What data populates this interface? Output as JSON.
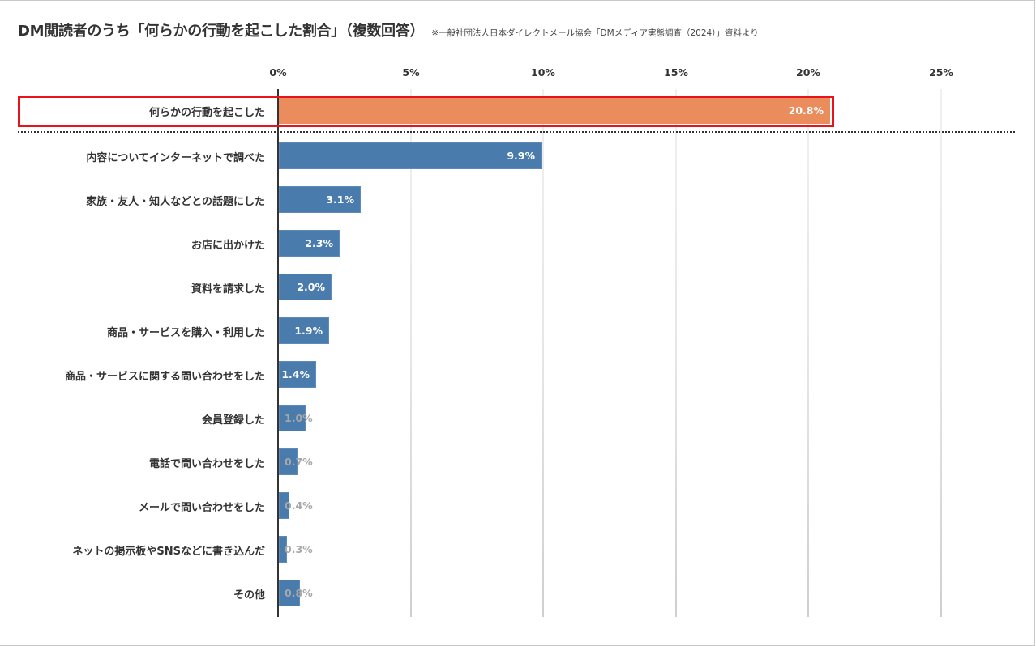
{
  "header": {
    "title": "DM閲読者のうち「何らかの行動を起こした割合」（複数回答）",
    "source_note": "※一般社団法人日本ダイレクトメール協会「DMメディア実態調査（2024）」資料より"
  },
  "axis": {
    "ticks": [
      "0%",
      "5%",
      "10%",
      "15%",
      "20%",
      "25%"
    ]
  },
  "rows": [
    {
      "label": "何らかの行動を起こした",
      "value": 20.8,
      "display": "20.8%"
    },
    {
      "label": "内容についてインターネットで調べた",
      "value": 9.9,
      "display": "9.9%"
    },
    {
      "label": "家族・友人・知人などとの話題にした",
      "value": 3.1,
      "display": "3.1%"
    },
    {
      "label": "お店に出かけた",
      "value": 2.3,
      "display": "2.3%"
    },
    {
      "label": "資料を請求した",
      "value": 2.0,
      "display": "2.0%"
    },
    {
      "label": "商品・サービスを購入・利用した",
      "value": 1.9,
      "display": "1.9%"
    },
    {
      "label": "商品・サービスに関する問い合わせをした",
      "value": 1.4,
      "display": "1.4%"
    },
    {
      "label": "会員登録した",
      "value": 1.0,
      "display": "1.0%"
    },
    {
      "label": "電話で問い合わせをした",
      "value": 0.7,
      "display": "0.7%"
    },
    {
      "label": "メールで問い合わせをした",
      "value": 0.4,
      "display": "0.4%"
    },
    {
      "label": "ネットの掲示板やSNSなどに書き込んだ",
      "value": 0.3,
      "display": "0.3%"
    },
    {
      "label": "その他",
      "value": 0.8,
      "display": "0.8%"
    }
  ],
  "colors": {
    "highlight_bar": "#ea8c5c",
    "bar": "#4a7bad",
    "highlight_border": "#e8141c"
  },
  "chart_data": {
    "type": "bar",
    "orientation": "horizontal",
    "title": "DM閲読者のうち「何らかの行動を起こした割合」（複数回答）",
    "subtitle": "※一般社団法人日本ダイレクトメール協会「DMメディア実態調査（2024）」資料より",
    "categories": [
      "何らかの行動を起こした",
      "内容についてインターネットで調べた",
      "家族・友人・知人などとの話題にした",
      "お店に出かけた",
      "資料を請求した",
      "商品・サービスを購入・利用した",
      "商品・サービスに関する問い合わせをした",
      "会員登録した",
      "電話で問い合わせをした",
      "メールで問い合わせをした",
      "ネットの掲示板やSNSなどに書き込んだ",
      "その他"
    ],
    "values": [
      20.8,
      9.9,
      3.1,
      2.3,
      2.0,
      1.9,
      1.4,
      1.0,
      0.7,
      0.4,
      0.3,
      0.8
    ],
    "unit": "%",
    "xlabel": "",
    "ylabel": "",
    "xlim": [
      0,
      25
    ],
    "x_ticks": [
      "0%",
      "5%",
      "10%",
      "15%",
      "20%",
      "25%"
    ],
    "grid": true,
    "legend": null,
    "annotations": [
      "First row highlighted with red outline and orange bar; dotted separator below it"
    ]
  }
}
